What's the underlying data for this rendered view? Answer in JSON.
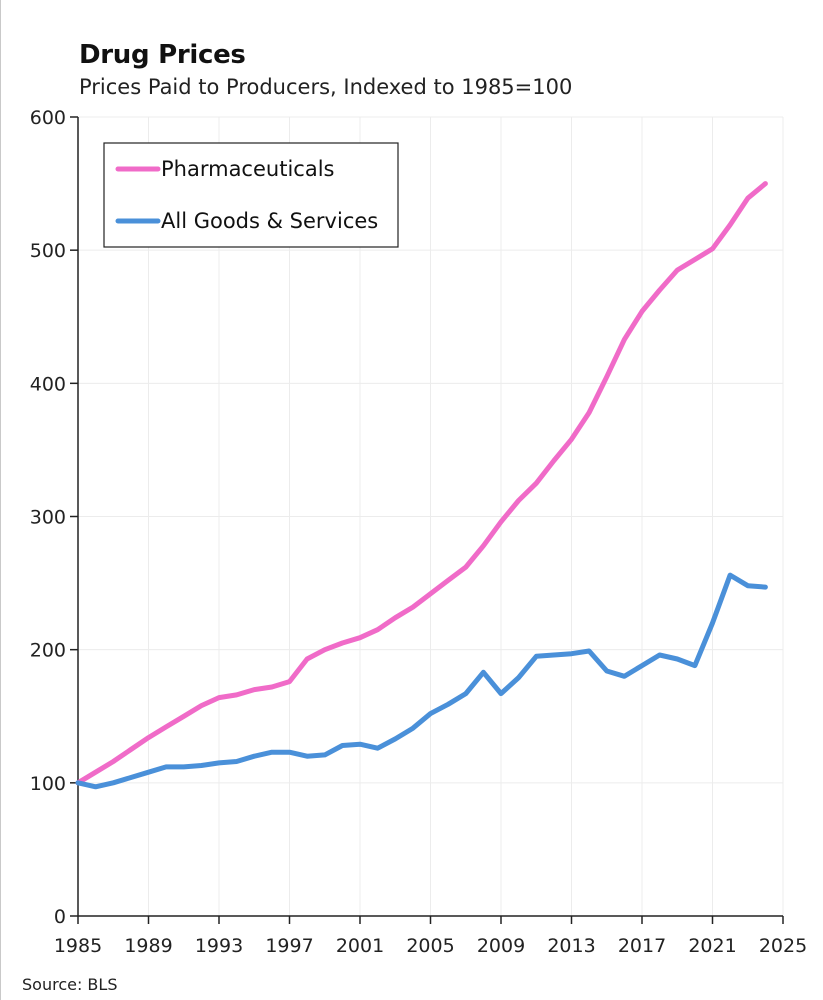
{
  "header": {
    "title": "Drug Prices",
    "subtitle": "Prices Paid to Producers, Indexed to 1985=100"
  },
  "footer": {
    "source": "Source: BLS"
  },
  "chart_data": {
    "type": "line",
    "title": "Drug Prices",
    "subtitle": "Prices Paid to Producers, Indexed to 1985=100",
    "xlabel": "",
    "ylabel": "",
    "xlim": [
      1985,
      2025
    ],
    "ylim": [
      0,
      600
    ],
    "xticks": [
      1985,
      1989,
      1993,
      1997,
      2001,
      2005,
      2009,
      2013,
      2017,
      2021,
      2025
    ],
    "yticks": [
      0,
      100,
      200,
      300,
      400,
      500,
      600
    ],
    "grid": true,
    "legend_position": "top-left",
    "x": [
      1985,
      1986,
      1987,
      1988,
      1989,
      1990,
      1991,
      1992,
      1993,
      1994,
      1995,
      1996,
      1997,
      1998,
      1999,
      2000,
      2001,
      2002,
      2003,
      2004,
      2005,
      2006,
      2007,
      2008,
      2009,
      2010,
      2011,
      2012,
      2013,
      2014,
      2015,
      2016,
      2017,
      2018,
      2019,
      2020,
      2021,
      2022,
      2023,
      2024
    ],
    "series": [
      {
        "name": "Pharmaceuticals",
        "color": "#f06bc8",
        "values": [
          100,
          108,
          116,
          125,
          134,
          142,
          150,
          158,
          164,
          166,
          170,
          172,
          176,
          193,
          200,
          205,
          209,
          215,
          224,
          232,
          242,
          252,
          262,
          278,
          296,
          312,
          325,
          342,
          358,
          378,
          405,
          433,
          454,
          470,
          485,
          493,
          501,
          519,
          539,
          550
        ]
      },
      {
        "name": "All Goods & Services",
        "color": "#4a90d9",
        "values": [
          100,
          97,
          100,
          104,
          108,
          112,
          112,
          113,
          115,
          116,
          120,
          123,
          123,
          120,
          121,
          128,
          129,
          126,
          133,
          141,
          152,
          159,
          167,
          183,
          167,
          179,
          195,
          196,
          197,
          199,
          184,
          180,
          188,
          196,
          193,
          188,
          220,
          256,
          248,
          247
        ]
      }
    ],
    "source": "Source: BLS"
  }
}
